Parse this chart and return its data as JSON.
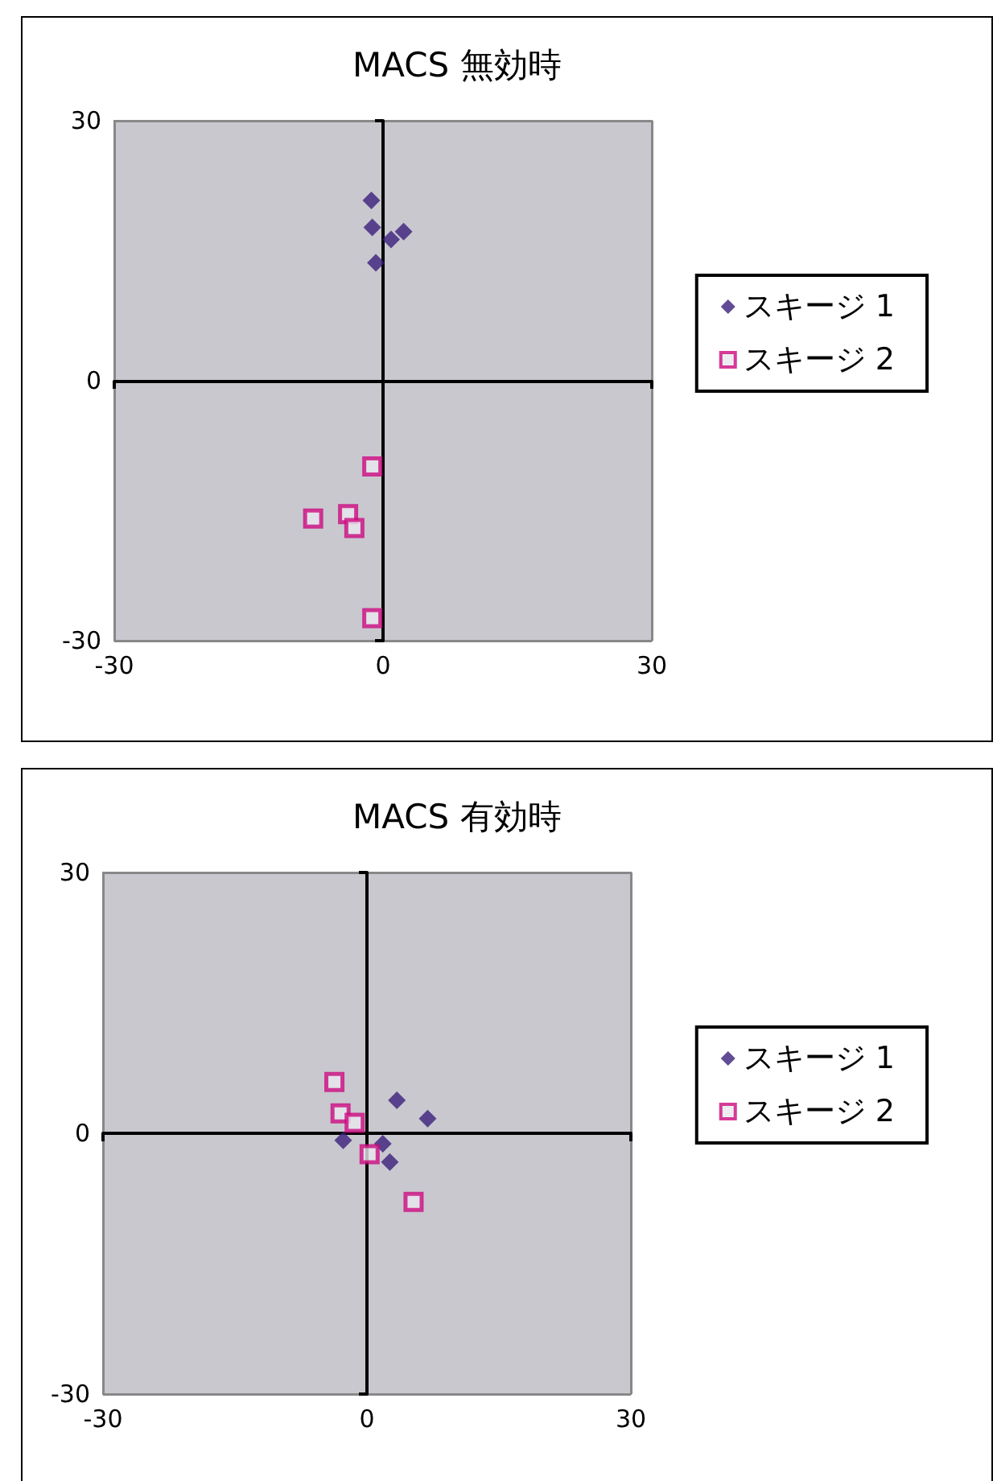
{
  "chart_data": [
    {
      "type": "scatter",
      "title": "MACS 無効時",
      "xlim": [
        -30,
        30
      ],
      "ylim": [
        -30,
        30
      ],
      "xticks": [
        -30,
        0,
        30
      ],
      "yticks": [
        -30,
        0,
        30
      ],
      "grid": true,
      "legend": "right",
      "series": [
        {
          "name": "スキージ 1",
          "color": "#3b1f7a",
          "marker": "diamond",
          "x": [
            -1.3,
            -1.2,
            0.9,
            2.3,
            -0.8
          ],
          "values": [
            20.8,
            17.7,
            16.3,
            17.2,
            13.6
          ]
        },
        {
          "name": "スキージ 2",
          "color": "#cc0a7f",
          "marker": "square",
          "x": [
            -1.2,
            -7.8,
            -3.9,
            -3.2,
            -1.2
          ],
          "values": [
            -9.9,
            -15.9,
            -15.4,
            -17.0,
            -27.4
          ]
        }
      ]
    },
    {
      "type": "scatter",
      "title": "MACS 有効時",
      "xlim": [
        -30,
        30
      ],
      "ylim": [
        -30,
        30
      ],
      "xticks": [
        -30,
        0,
        30
      ],
      "yticks": [
        -30,
        0,
        30
      ],
      "grid": true,
      "legend": "right",
      "series": [
        {
          "name": "スキージ 1",
          "color": "#3b1f7a",
          "marker": "diamond",
          "x": [
            3.4,
            6.9,
            -2.7,
            1.8,
            2.6
          ],
          "values": [
            3.8,
            1.7,
            -0.8,
            -1.2,
            -3.3
          ]
        },
        {
          "name": "スキージ 2",
          "color": "#cc0a7f",
          "marker": "square",
          "x": [
            -3.7,
            -3.0,
            -1.4,
            0.3,
            5.3
          ],
          "values": [
            5.9,
            2.3,
            1.2,
            -2.4,
            -7.9
          ]
        }
      ]
    }
  ]
}
